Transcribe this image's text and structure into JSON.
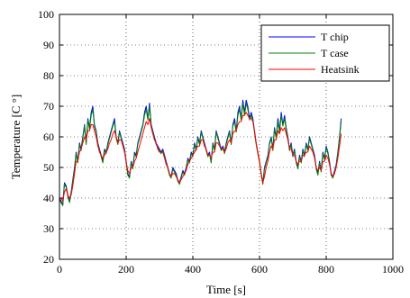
{
  "chart_data": {
    "type": "line",
    "title": "",
    "xlabel": "Time [s]",
    "ylabel": "Temperature [C °]",
    "xlim": [
      0,
      1000
    ],
    "ylim": [
      20,
      100
    ],
    "xticks": [
      0,
      200,
      400,
      600,
      800,
      1000
    ],
    "yticks": [
      20,
      30,
      40,
      50,
      60,
      70,
      80,
      90,
      100
    ],
    "grid": true,
    "legend_position": "top-right",
    "series": [
      {
        "name": "T chip",
        "color": "#0000ff",
        "x": [
          0,
          5,
          10,
          15,
          20,
          25,
          30,
          35,
          40,
          45,
          50,
          55,
          60,
          65,
          70,
          75,
          80,
          85,
          90,
          95,
          100,
          105,
          110,
          115,
          120,
          125,
          130,
          135,
          140,
          145,
          150,
          155,
          160,
          165,
          170,
          175,
          180,
          185,
          190,
          195,
          200,
          205,
          210,
          215,
          220,
          225,
          230,
          235,
          240,
          245,
          250,
          255,
          260,
          265,
          270,
          275,
          280,
          285,
          290,
          295,
          300,
          305,
          310,
          315,
          320,
          325,
          330,
          335,
          340,
          345,
          350,
          355,
          360,
          365,
          370,
          375,
          380,
          385,
          390,
          395,
          400,
          405,
          410,
          415,
          420,
          425,
          430,
          435,
          440,
          445,
          450,
          455,
          460,
          465,
          470,
          475,
          480,
          485,
          490,
          495,
          500,
          505,
          510,
          515,
          520,
          525,
          530,
          535,
          540,
          545,
          550,
          555,
          560,
          565,
          570,
          575,
          580,
          585,
          590,
          595,
          600,
          605,
          610,
          615,
          620,
          625,
          630,
          635,
          640,
          645,
          650,
          655,
          660,
          665,
          670,
          675,
          680,
          685,
          690,
          695,
          700,
          705,
          710,
          715,
          720,
          725,
          730,
          735,
          740,
          745,
          750,
          755,
          760,
          765,
          770,
          775,
          780,
          785,
          790,
          795,
          800,
          805,
          810,
          815,
          820,
          825,
          830,
          835,
          840,
          845
        ],
        "values": [
          40,
          39,
          38,
          45,
          44,
          41,
          39,
          42,
          46,
          50,
          55,
          52,
          58,
          56,
          60,
          64,
          58,
          66,
          63,
          68,
          70,
          64,
          62,
          58,
          56,
          54,
          52,
          56,
          55,
          58,
          60,
          62,
          64,
          66,
          60,
          58,
          62,
          60,
          58,
          56,
          52,
          48,
          47,
          52,
          50,
          55,
          54,
          58,
          60,
          62,
          64,
          68,
          70,
          66,
          71,
          64,
          62,
          60,
          58,
          57,
          56,
          55,
          56,
          54,
          52,
          50,
          48,
          47,
          50,
          49,
          48,
          46,
          45,
          47,
          49,
          48,
          50,
          53,
          52,
          55,
          54,
          58,
          56,
          60,
          58,
          62,
          60,
          58,
          56,
          54,
          55,
          52,
          58,
          56,
          62,
          60,
          58,
          56,
          57,
          55,
          58,
          60,
          62,
          58,
          64,
          66,
          62,
          68,
          70,
          66,
          72,
          68,
          72,
          70,
          66,
          68,
          66,
          62,
          58,
          55,
          52,
          48,
          45,
          50,
          52,
          54,
          58,
          60,
          56,
          63,
          60,
          66,
          62,
          68,
          64,
          67,
          63,
          60,
          56,
          58,
          54,
          56,
          52,
          50,
          54,
          52,
          56,
          54,
          58,
          56,
          60,
          58,
          56,
          54,
          50,
          48,
          52,
          49,
          55,
          53,
          57,
          55,
          52,
          48,
          47,
          49,
          51,
          55,
          60,
          66
        ]
      },
      {
        "name": "T case",
        "color": "#008000",
        "x": [
          0,
          5,
          10,
          15,
          20,
          25,
          30,
          35,
          40,
          45,
          50,
          55,
          60,
          65,
          70,
          75,
          80,
          85,
          90,
          95,
          100,
          105,
          110,
          115,
          120,
          125,
          130,
          135,
          140,
          145,
          150,
          155,
          160,
          165,
          170,
          175,
          180,
          185,
          190,
          195,
          200,
          205,
          210,
          215,
          220,
          225,
          230,
          235,
          240,
          245,
          250,
          255,
          260,
          265,
          270,
          275,
          280,
          285,
          290,
          295,
          300,
          305,
          310,
          315,
          320,
          325,
          330,
          335,
          340,
          345,
          350,
          355,
          360,
          365,
          370,
          375,
          380,
          385,
          390,
          395,
          400,
          405,
          410,
          415,
          420,
          425,
          430,
          435,
          440,
          445,
          450,
          455,
          460,
          465,
          470,
          475,
          480,
          485,
          490,
          495,
          500,
          505,
          510,
          515,
          520,
          525,
          530,
          535,
          540,
          545,
          550,
          555,
          560,
          565,
          570,
          575,
          580,
          585,
          590,
          595,
          600,
          605,
          610,
          615,
          620,
          625,
          630,
          635,
          640,
          645,
          650,
          655,
          660,
          665,
          670,
          675,
          680,
          685,
          690,
          695,
          700,
          705,
          710,
          715,
          720,
          725,
          730,
          735,
          740,
          745,
          750,
          755,
          760,
          765,
          770,
          775,
          780,
          785,
          790,
          795,
          800,
          805,
          810,
          815,
          820,
          825,
          830,
          835,
          840,
          845
        ],
        "values": [
          39.5,
          38.5,
          37.5,
          44.5,
          43.5,
          40.5,
          38.5,
          41.5,
          45.5,
          49.5,
          54.5,
          51.5,
          57.5,
          55.5,
          59.5,
          63.5,
          57.5,
          65.5,
          62.5,
          67,
          69,
          63.5,
          61.5,
          57.5,
          55.5,
          53.5,
          51.5,
          55.5,
          54.5,
          57.5,
          59.5,
          61.5,
          63.5,
          65,
          59.5,
          57.5,
          61.5,
          59.5,
          57.5,
          55.5,
          51.5,
          47.5,
          46.5,
          51.5,
          49.5,
          54.5,
          53.5,
          57.5,
          59.5,
          61.5,
          63.5,
          67,
          69,
          65.5,
          70,
          63.5,
          61.5,
          59.5,
          57.5,
          56.5,
          55.5,
          54.5,
          55.5,
          53.5,
          51.5,
          49.5,
          47.5,
          46.5,
          49.5,
          48.5,
          47.5,
          45.5,
          44.5,
          46.5,
          48.5,
          47.5,
          49.5,
          52.5,
          51.5,
          54.5,
          53.5,
          57.5,
          55.5,
          59.5,
          57.5,
          61.5,
          59.5,
          57.5,
          55.5,
          53.5,
          54.5,
          51.5,
          57.5,
          55.5,
          61.5,
          59.5,
          57.5,
          55.5,
          56.5,
          54.5,
          57.5,
          59.5,
          61.5,
          57.5,
          63.5,
          65,
          61.5,
          67,
          69,
          65.5,
          71,
          67,
          71,
          69,
          65.5,
          67,
          65.5,
          61.5,
          57.5,
          54.5,
          51.5,
          47.5,
          44.5,
          49.5,
          51.5,
          53.5,
          57.5,
          59.5,
          55.5,
          62.5,
          59.5,
          65,
          61.5,
          67,
          63.5,
          66,
          62.5,
          59.5,
          55.5,
          57.5,
          53.5,
          55.5,
          51.5,
          49.5,
          53.5,
          51.5,
          55.5,
          53.5,
          57.5,
          55.5,
          59.5,
          57.5,
          55.5,
          53.5,
          49.5,
          47.5,
          51.5,
          48.5,
          54.5,
          52.5,
          56.5,
          54.5,
          51.5,
          47.5,
          46.5,
          48.5,
          50.5,
          54.5,
          59.5,
          65
        ]
      },
      {
        "name": "Heatsink",
        "color": "#ff0000",
        "x": [
          0,
          5,
          10,
          15,
          20,
          25,
          30,
          35,
          40,
          45,
          50,
          55,
          60,
          65,
          70,
          75,
          80,
          85,
          90,
          95,
          100,
          105,
          110,
          115,
          120,
          125,
          130,
          135,
          140,
          145,
          150,
          155,
          160,
          165,
          170,
          175,
          180,
          185,
          190,
          195,
          200,
          205,
          210,
          215,
          220,
          225,
          230,
          235,
          240,
          245,
          250,
          255,
          260,
          265,
          270,
          275,
          280,
          285,
          290,
          295,
          300,
          305,
          310,
          315,
          320,
          325,
          330,
          335,
          340,
          345,
          350,
          355,
          360,
          365,
          370,
          375,
          380,
          385,
          390,
          395,
          400,
          405,
          410,
          415,
          420,
          425,
          430,
          435,
          440,
          445,
          450,
          455,
          460,
          465,
          470,
          475,
          480,
          485,
          490,
          495,
          500,
          505,
          510,
          515,
          520,
          525,
          530,
          535,
          540,
          545,
          550,
          555,
          560,
          565,
          570,
          575,
          580,
          585,
          590,
          595,
          600,
          605,
          610,
          615,
          620,
          625,
          630,
          635,
          640,
          645,
          650,
          655,
          660,
          665,
          670,
          675,
          680,
          685,
          690,
          695,
          700,
          705,
          710,
          715,
          720,
          725,
          730,
          735,
          740,
          745,
          750,
          755,
          760,
          765,
          770,
          775,
          780,
          785,
          790,
          795,
          800,
          805,
          810,
          815,
          820,
          825,
          830,
          835,
          840,
          845
        ],
        "values": [
          40,
          40,
          39,
          42,
          43,
          41,
          40,
          41,
          44,
          48,
          52,
          52,
          55,
          56,
          58,
          60,
          59,
          62,
          62,
          64,
          64,
          62,
          60,
          57,
          55,
          54,
          53,
          54,
          55,
          56,
          58,
          59,
          61,
          62,
          60,
          58,
          59,
          59,
          57,
          55,
          52,
          49,
          48,
          50,
          50,
          52,
          53,
          55,
          57,
          59,
          61,
          63,
          65,
          64,
          66,
          63,
          61,
          59,
          58,
          56,
          55,
          55,
          55,
          53,
          51,
          50,
          48,
          47,
          48,
          48,
          47,
          46,
          45,
          46,
          47,
          48,
          49,
          51,
          52,
          53,
          54,
          55,
          56,
          57,
          57,
          59,
          59,
          57,
          56,
          54,
          54,
          53,
          55,
          55,
          58,
          58,
          57,
          56,
          56,
          55,
          56,
          58,
          59,
          58,
          61,
          62,
          62,
          64,
          65,
          65,
          67,
          67,
          68,
          67,
          66,
          66,
          65,
          62,
          58,
          55,
          52,
          48,
          45,
          47,
          50,
          52,
          55,
          57,
          56,
          59,
          59,
          62,
          61,
          63,
          62,
          63,
          61,
          59,
          56,
          56,
          54,
          54,
          52,
          51,
          52,
          52,
          54,
          54,
          55,
          55,
          57,
          56,
          55,
          53,
          50,
          49,
          50,
          49,
          52,
          52,
          54,
          53,
          51,
          48,
          47,
          48,
          50,
          53,
          57,
          61
        ]
      }
    ]
  }
}
